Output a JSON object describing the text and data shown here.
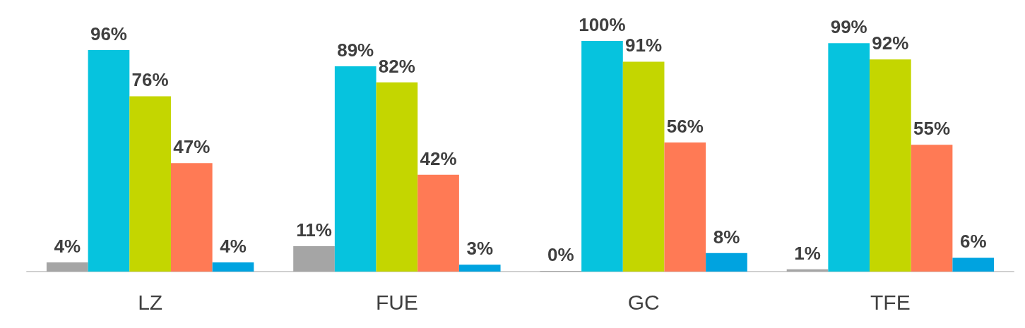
{
  "chart_data": {
    "type": "bar",
    "categories": [
      "LZ",
      "FUE",
      "GC",
      "TFE"
    ],
    "tick_labels": "x",
    "series": [
      {
        "color": "#a5a5a5",
        "values": [
          4,
          11,
          0,
          1
        ],
        "value_labels": [
          "4%",
          "11%",
          "0%",
          "1%"
        ]
      },
      {
        "color": "#06c3de",
        "values": [
          96,
          89,
          100,
          99
        ],
        "value_labels": [
          "96%",
          "89%",
          "100%",
          "99%"
        ]
      },
      {
        "color": "#c4d600",
        "values": [
          76,
          82,
          91,
          92
        ],
        "value_labels": [
          "76%",
          "82%",
          "91%",
          "92%"
        ]
      },
      {
        "color": "#ff7a55",
        "values": [
          47,
          42,
          56,
          55
        ],
        "value_labels": [
          "47%",
          "42%",
          "56%",
          "55%"
        ]
      },
      {
        "color": "#00a3e0",
        "values": [
          4,
          3,
          8,
          6
        ],
        "value_labels": [
          "4%",
          "3%",
          "8%",
          "6%"
        ]
      }
    ]
  }
}
